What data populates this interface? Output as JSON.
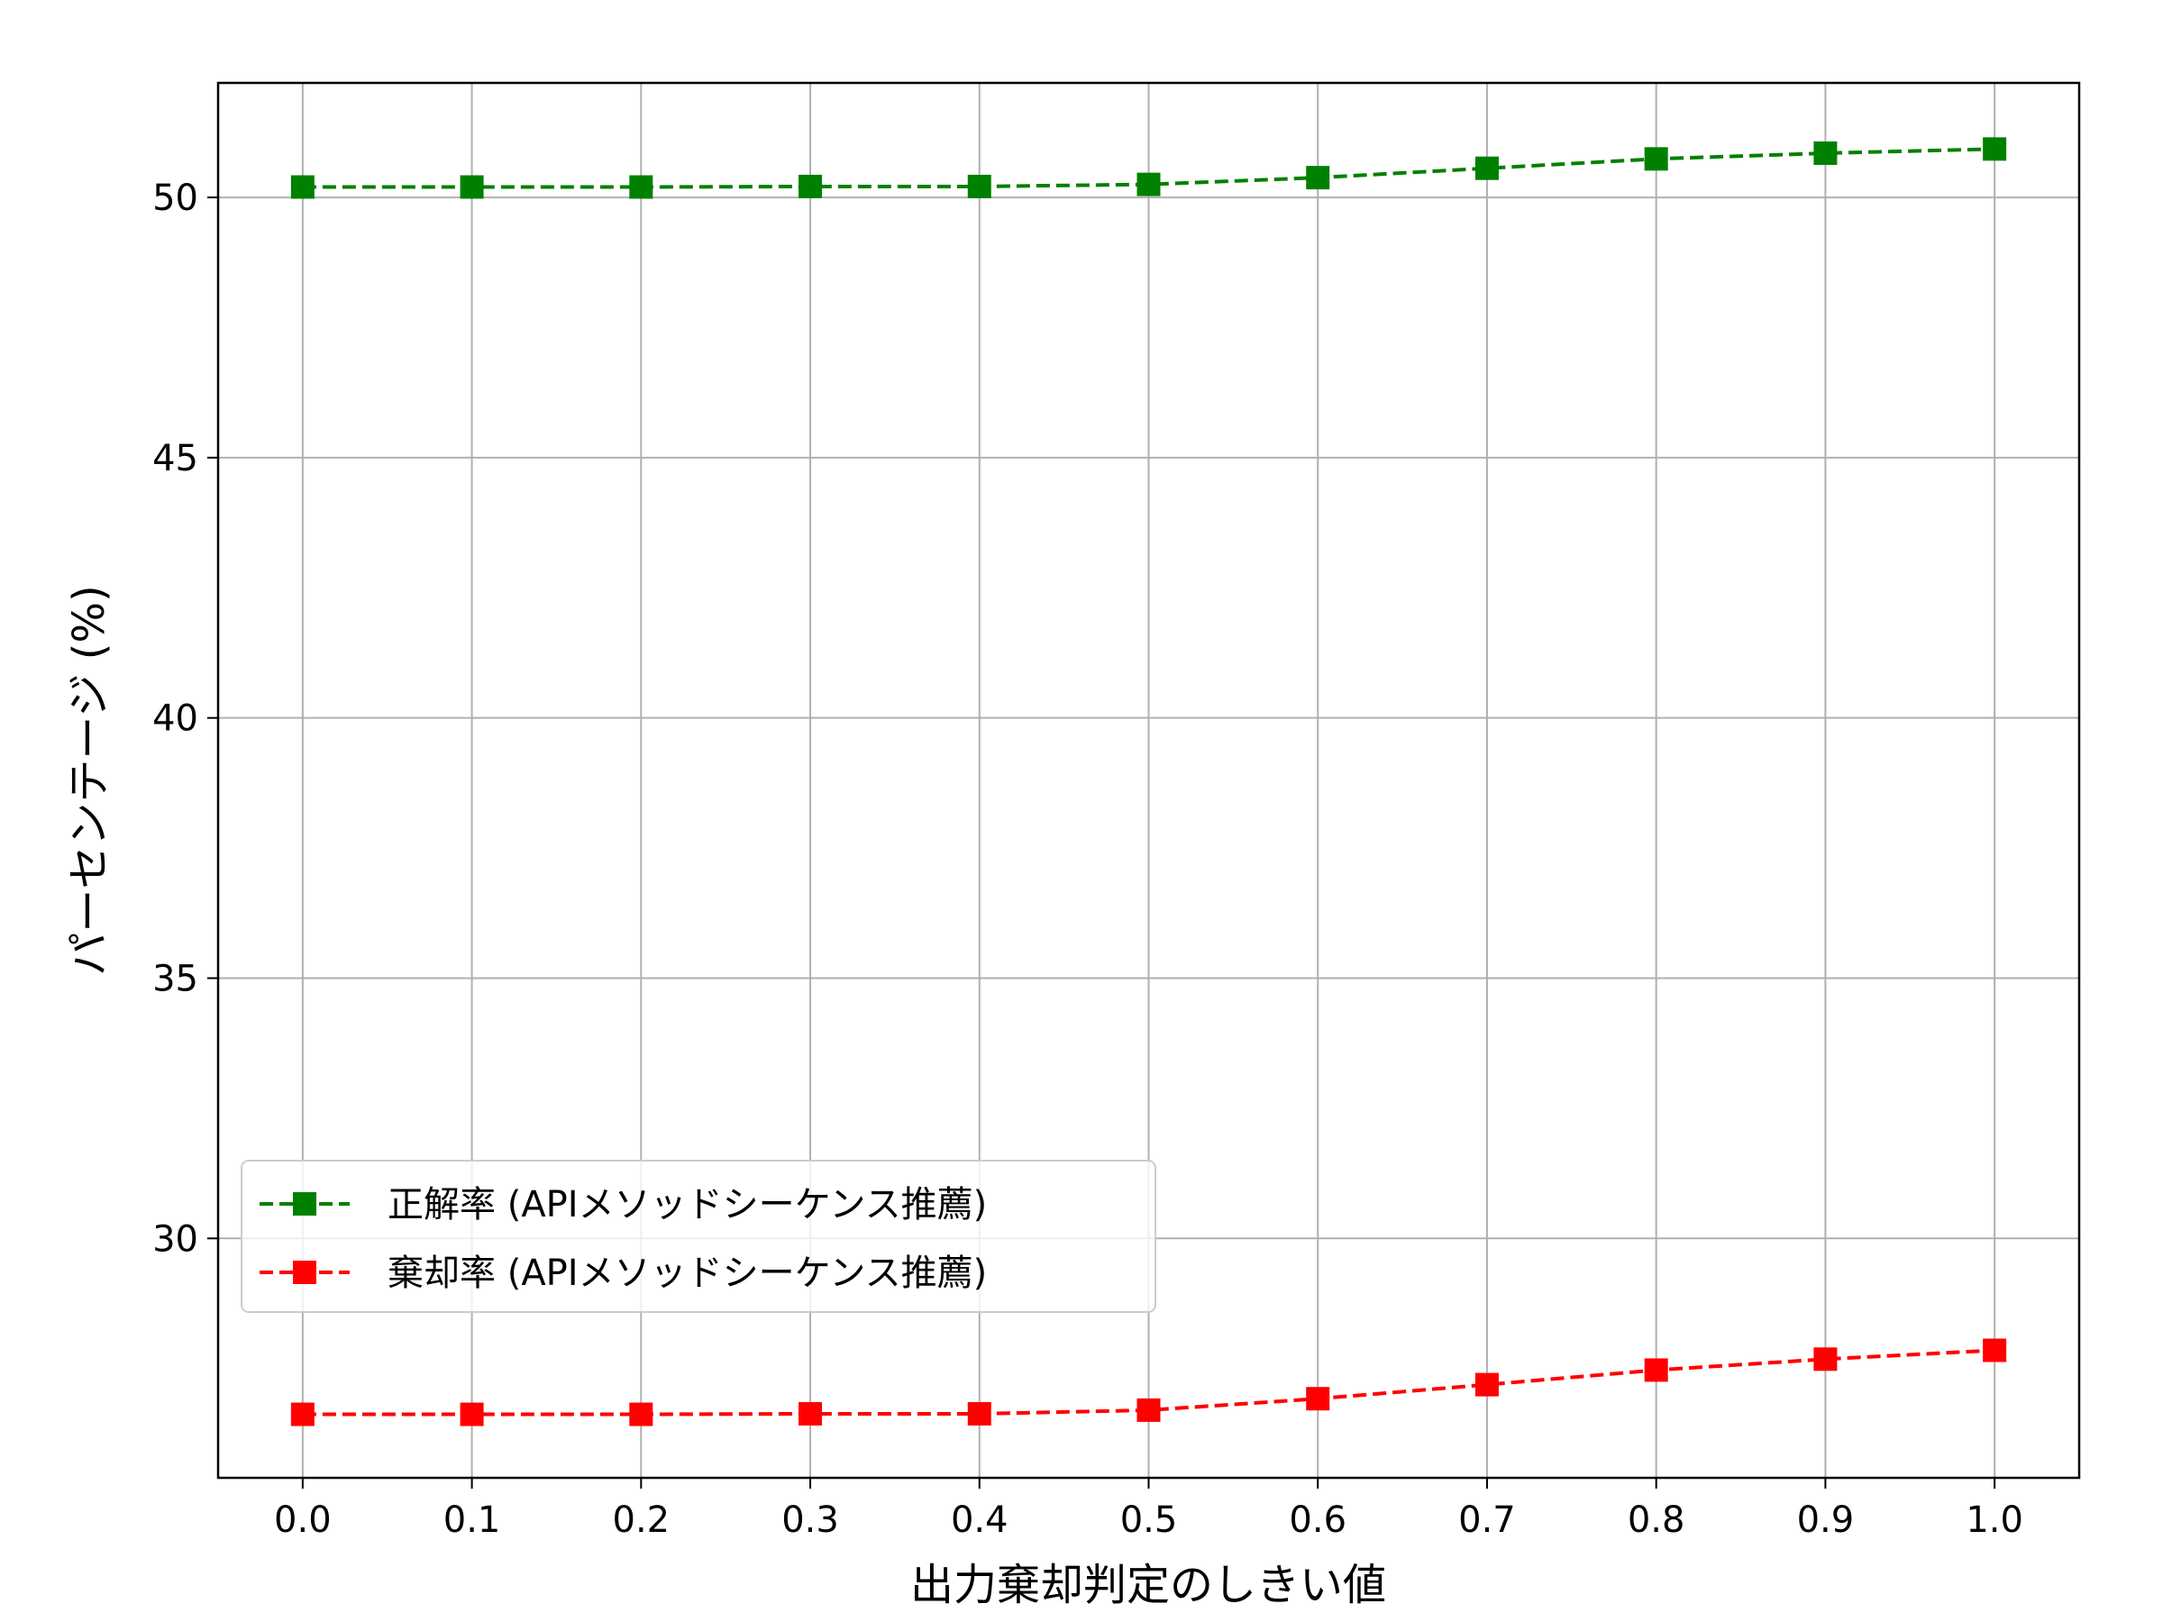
{
  "chart_data": {
    "type": "line",
    "title": "",
    "xlabel": "出力棄却判定のしきい値",
    "ylabel": "パーセンテージ (%)",
    "x": [
      0.0,
      0.1,
      0.2,
      0.3,
      0.4,
      0.5,
      0.6,
      0.7,
      0.8,
      0.9,
      1.0
    ],
    "x_tick_labels": [
      "0.0",
      "0.1",
      "0.2",
      "0.3",
      "0.4",
      "0.5",
      "0.6",
      "0.7",
      "0.8",
      "0.9",
      "1.0"
    ],
    "y_ticks": [
      30,
      35,
      40,
      45,
      50
    ],
    "y_tick_labels": [
      "30",
      "35",
      "40",
      "45",
      "50"
    ],
    "xlim": [
      -0.05,
      1.05
    ],
    "ylim": [
      25.4,
      52.2
    ],
    "grid": true,
    "legend_position": "lower-left",
    "series": [
      {
        "name": "正解率 (APIメソッドシーケンス推薦)",
        "color": "#008000",
        "line_style": "dashed",
        "marker": "square",
        "values": [
          50.2,
          50.2,
          50.2,
          50.21,
          50.21,
          50.25,
          50.38,
          50.56,
          50.74,
          50.85,
          50.93
        ]
      },
      {
        "name": "棄却率 (APIメソッドシーケンス推薦)",
        "color": "#ff0000",
        "line_style": "dashed",
        "marker": "square",
        "values": [
          26.62,
          26.62,
          26.62,
          26.63,
          26.63,
          26.7,
          26.92,
          27.19,
          27.47,
          27.68,
          27.85
        ]
      }
    ]
  }
}
